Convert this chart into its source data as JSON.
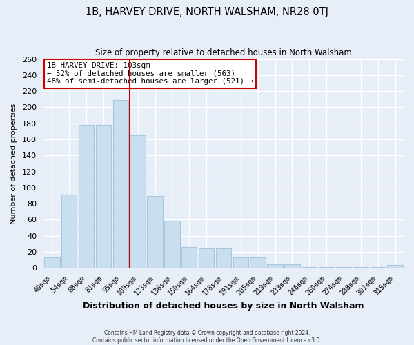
{
  "title": "1B, HARVEY DRIVE, NORTH WALSHAM, NR28 0TJ",
  "subtitle": "Size of property relative to detached houses in North Walsham",
  "xlabel": "Distribution of detached houses by size in North Walsham",
  "ylabel": "Number of detached properties",
  "bar_labels": [
    "40sqm",
    "54sqm",
    "68sqm",
    "81sqm",
    "95sqm",
    "109sqm",
    "123sqm",
    "136sqm",
    "150sqm",
    "164sqm",
    "178sqm",
    "191sqm",
    "205sqm",
    "219sqm",
    "233sqm",
    "246sqm",
    "260sqm",
    "274sqm",
    "288sqm",
    "301sqm",
    "315sqm"
  ],
  "bar_values": [
    13,
    91,
    178,
    178,
    209,
    165,
    90,
    59,
    26,
    24,
    24,
    13,
    13,
    5,
    5,
    1,
    1,
    1,
    1,
    1,
    4
  ],
  "bar_color": "#c9dff0",
  "bar_edge_color": "#a8c8e0",
  "vline_index": 5,
  "vline_color": "#cc0000",
  "annotation_title": "1B HARVEY DRIVE: 103sqm",
  "annotation_line1": "← 52% of detached houses are smaller (563)",
  "annotation_line2": "48% of semi-detached houses are larger (521) →",
  "ylim": [
    0,
    260
  ],
  "yticks": [
    0,
    20,
    40,
    60,
    80,
    100,
    120,
    140,
    160,
    180,
    200,
    220,
    240,
    260
  ],
  "footer1": "Contains HM Land Registry data © Crown copyright and database right 2024.",
  "footer2": "Contains public sector information licensed under the Open Government Licence v3.0.",
  "bg_color": "#e8eef8",
  "grid_color": "#ffffff"
}
